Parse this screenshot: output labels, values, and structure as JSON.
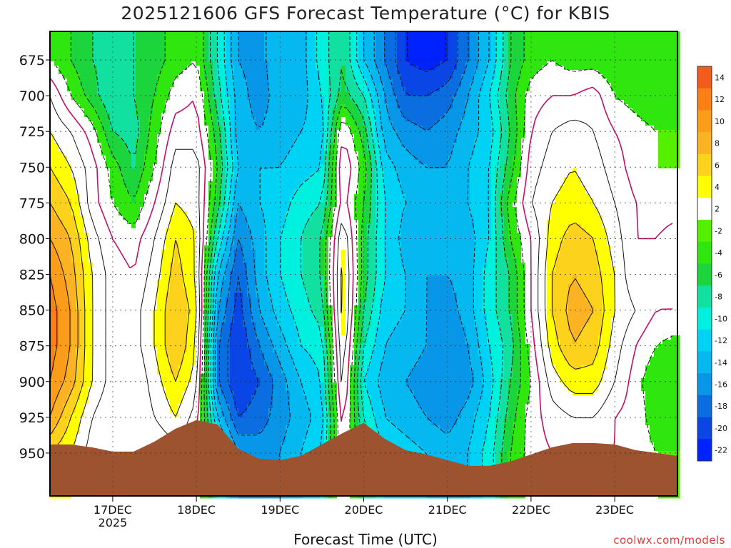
{
  "title": "2025121606 GFS Forecast Temperature (°C) for KBIS",
  "watermark": "coolwx.com/models",
  "chart_data": {
    "type": "heatmap",
    "title": "2025121606 GFS Forecast Temperature (°C) for KBIS",
    "xlabel": "Forecast Time (UTC)",
    "ylabel": "",
    "x_ticks": [
      "17DEC",
      "18DEC",
      "19DEC",
      "20DEC",
      "21DEC",
      "22DEC",
      "23DEC"
    ],
    "x_year_label": "2025",
    "y_ticks": [
      675,
      700,
      725,
      750,
      775,
      800,
      825,
      850,
      875,
      900,
      925,
      950
    ],
    "y_range": [
      980,
      655
    ],
    "grid": true,
    "colorbar": {
      "placement": "right",
      "labels": [
        14,
        12,
        10,
        8,
        6,
        4,
        2,
        -2,
        -4,
        -6,
        -8,
        -10,
        -12,
        -14,
        -16,
        -18,
        -20,
        -22
      ],
      "colors": [
        "#f25c1a",
        "#f97f16",
        "#fb9d1a",
        "#fbb324",
        "#fdd21c",
        "#ffff00",
        "#ffffff",
        "#55f000",
        "#2fe60e",
        "#1cd43c",
        "#11e0a0",
        "#00f0e0",
        "#00d2f5",
        "#05b8f0",
        "#0896e8",
        "#0a6ee0",
        "#0a46e6",
        "#0022ff"
      ]
    },
    "x_day_start": 16.25,
    "x_day_end": 23.75,
    "values_deg_c": {
      "columns_x_days": [
        16.25,
        16.5,
        16.75,
        17.0,
        17.25,
        17.5,
        17.75,
        18.0,
        18.25,
        18.5,
        18.75,
        19.0,
        19.25,
        19.5,
        19.75,
        20.0,
        20.25,
        20.5,
        20.75,
        21.0,
        21.25,
        21.5,
        21.75,
        22.0,
        22.25,
        22.5,
        22.75,
        23.0,
        23.25,
        23.5,
        23.75
      ],
      "rows_pressure_hpa": [
        675,
        700,
        725,
        750,
        775,
        800,
        825,
        850,
        875,
        900,
        925,
        950
      ],
      "grid": [
        [
          -2,
          -4,
          -6,
          -7,
          -6,
          -5,
          -3,
          -2,
          -8,
          -14,
          -15,
          -12,
          -13,
          -9,
          -6,
          -12,
          -16,
          -20,
          -21,
          -20,
          -16,
          -12,
          -6,
          -3,
          -2,
          -3,
          -3,
          -4,
          -3,
          -4,
          -4
        ],
        [
          2,
          -2,
          -5,
          -8,
          -6,
          -4,
          -1,
          0,
          -7,
          -13,
          -15,
          -13,
          -13,
          -10,
          -5,
          -8,
          -14,
          -18,
          -18,
          -17,
          -14,
          -10,
          -5,
          -1,
          0,
          0,
          1,
          -2,
          -3,
          -4,
          -4
        ],
        [
          4,
          2,
          -1,
          -6,
          -7,
          -3,
          1,
          1,
          -5,
          -13,
          -14,
          -13,
          -12,
          -11,
          0,
          -5,
          -13,
          -15,
          -16,
          -15,
          -13,
          -11,
          -6,
          0,
          2,
          3,
          2,
          0,
          -1,
          -2,
          -2
        ],
        [
          6,
          4,
          1,
          -3,
          -6,
          -2,
          3,
          3,
          -4,
          -12,
          -12,
          -12,
          -11,
          -10,
          2,
          -3,
          -11,
          -13,
          -14,
          -14,
          -12,
          -10,
          -5,
          1,
          3,
          4,
          3,
          1,
          -1,
          -2,
          -2
        ],
        [
          8,
          6,
          1,
          -2,
          -4,
          0,
          4,
          3,
          -5,
          -14,
          -12,
          -11,
          -9,
          -8,
          1,
          -4,
          -10,
          -12,
          -13,
          -13,
          -12,
          -10,
          -3,
          2,
          4,
          5,
          4,
          2,
          0,
          -1,
          -1
        ],
        [
          10,
          8,
          3,
          0,
          -1,
          2,
          6,
          4,
          -8,
          -16,
          -13,
          -10,
          -8,
          -6,
          4,
          -5,
          -10,
          -13,
          -14,
          -14,
          -13,
          -10,
          -4,
          0,
          5,
          7,
          6,
          3,
          0,
          0,
          1
        ],
        [
          12,
          9,
          4,
          1,
          0,
          3,
          7,
          4,
          -12,
          -18,
          -13,
          -10,
          -8,
          -6,
          5,
          -5,
          -10,
          -12,
          -14,
          -14,
          -13,
          -9,
          -6,
          0,
          6,
          8,
          7,
          4,
          0,
          1,
          1
        ],
        [
          13,
          10,
          4,
          1,
          1,
          4,
          8,
          5,
          -14,
          -19,
          -14,
          -11,
          -9,
          -7,
          5,
          -6,
          -11,
          -12,
          -14,
          -15,
          -13,
          -9,
          -6,
          0,
          6,
          9,
          8,
          4,
          2,
          0,
          0
        ],
        [
          13,
          10,
          4,
          1,
          1,
          4,
          8,
          4,
          -16,
          -20,
          -16,
          -13,
          -10,
          -9,
          4,
          -8,
          -12,
          -13,
          -14,
          -16,
          -14,
          -10,
          -7,
          -1,
          5,
          8,
          7,
          3,
          0,
          -2,
          -3
        ],
        [
          12,
          9,
          4,
          1,
          0,
          3,
          6,
          3,
          -16,
          -20,
          -18,
          -15,
          -12,
          -10,
          3,
          -10,
          -13,
          -14,
          -15,
          -16,
          -15,
          -11,
          -6,
          -2,
          3,
          5,
          5,
          2,
          -1,
          -4,
          -4
        ],
        [
          10,
          6,
          2,
          0,
          0,
          2,
          4,
          1,
          -12,
          -18,
          -17,
          -15,
          -13,
          -11,
          1,
          -8,
          -12,
          -13,
          -14,
          -15,
          -13,
          -10,
          -5,
          -1,
          1,
          2,
          2,
          0,
          -1,
          -3,
          -3
        ],
        [
          6,
          4,
          1,
          0,
          0,
          0,
          1,
          0,
          -8,
          -14,
          -15,
          -14,
          -12,
          -10,
          0,
          -6,
          -10,
          -11,
          -12,
          -13,
          -12,
          -9,
          -4,
          -1,
          0,
          0,
          0,
          0,
          -1,
          -2,
          -2
        ]
      ]
    },
    "surface_pressure_hpa": {
      "x_days": [
        16.25,
        16.5,
        16.75,
        17.0,
        17.25,
        17.5,
        17.75,
        18.0,
        18.25,
        18.5,
        18.75,
        19.0,
        19.25,
        19.5,
        19.75,
        20.0,
        20.25,
        20.5,
        20.75,
        21.0,
        21.25,
        21.5,
        21.75,
        22.0,
        22.25,
        22.5,
        22.75,
        23.0,
        23.25,
        23.5,
        23.75
      ],
      "values": [
        944,
        944,
        946,
        949,
        949,
        942,
        933,
        927,
        930,
        947,
        954,
        955,
        952,
        944,
        936,
        929,
        940,
        948,
        951,
        955,
        959,
        959,
        956,
        951,
        946,
        943,
        943,
        944,
        948,
        950,
        952
      ]
    }
  }
}
